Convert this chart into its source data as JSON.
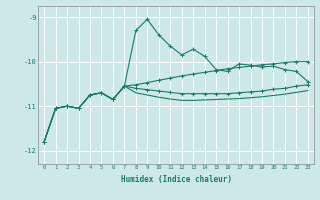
{
  "xlabel": "Humidex (Indice chaleur)",
  "ylabel": "",
  "x_ticks": [
    0,
    1,
    2,
    3,
    4,
    5,
    6,
    7,
    8,
    9,
    10,
    11,
    12,
    13,
    14,
    15,
    16,
    17,
    18,
    19,
    20,
    21,
    22,
    23
  ],
  "xlim": [
    -0.5,
    23.5
  ],
  "ylim": [
    -12.3,
    -8.75
  ],
  "y_ticks": [
    -12,
    -11,
    -10,
    -9
  ],
  "background_color": "#cce8e8",
  "grid_color": "#ffffff",
  "line_color": "#1a7a6a",
  "series1_x": [
    0,
    1,
    2,
    3,
    4,
    5,
    6,
    7,
    8,
    9,
    10,
    11,
    12,
    13,
    14,
    15,
    16,
    17,
    18,
    19,
    20,
    21,
    22,
    23
  ],
  "series1_y": [
    -11.8,
    -11.05,
    -11.0,
    -11.05,
    -10.75,
    -10.7,
    -10.85,
    -10.55,
    -9.3,
    -9.05,
    -9.4,
    -9.65,
    -9.85,
    -9.72,
    -9.88,
    -10.18,
    -10.22,
    -10.05,
    -10.08,
    -10.12,
    -10.1,
    -10.18,
    -10.22,
    -10.45
  ],
  "series2_x": [
    0,
    1,
    2,
    3,
    4,
    5,
    6,
    7,
    8,
    9,
    10,
    11,
    12,
    13,
    14,
    15,
    16,
    17,
    18,
    19,
    20,
    21,
    22,
    23
  ],
  "series2_y": [
    -11.8,
    -11.05,
    -11.0,
    -11.05,
    -10.75,
    -10.7,
    -10.85,
    -10.55,
    -10.52,
    -10.47,
    -10.42,
    -10.37,
    -10.32,
    -10.28,
    -10.24,
    -10.2,
    -10.16,
    -10.13,
    -10.1,
    -10.07,
    -10.05,
    -10.02,
    -10.0,
    -10.0
  ],
  "series3_x": [
    0,
    1,
    2,
    3,
    4,
    5,
    6,
    7,
    8,
    9,
    10,
    11,
    12,
    13,
    14,
    15,
    16,
    17,
    18,
    19,
    20,
    21,
    22,
    23
  ],
  "series3_y": [
    -11.8,
    -11.05,
    -11.0,
    -11.05,
    -10.75,
    -10.7,
    -10.85,
    -10.55,
    -10.6,
    -10.63,
    -10.66,
    -10.69,
    -10.72,
    -10.72,
    -10.72,
    -10.72,
    -10.72,
    -10.7,
    -10.68,
    -10.66,
    -10.62,
    -10.6,
    -10.55,
    -10.52
  ],
  "series4_x": [
    0,
    1,
    2,
    3,
    4,
    5,
    6,
    7,
    8,
    9,
    10,
    11,
    12,
    13,
    14,
    15,
    16,
    17,
    18,
    19,
    20,
    21,
    22,
    23
  ],
  "series4_y": [
    -11.8,
    -11.05,
    -11.0,
    -11.05,
    -10.75,
    -10.7,
    -10.85,
    -10.55,
    -10.7,
    -10.75,
    -10.8,
    -10.84,
    -10.87,
    -10.87,
    -10.86,
    -10.85,
    -10.84,
    -10.83,
    -10.81,
    -10.79,
    -10.76,
    -10.73,
    -10.69,
    -10.65
  ]
}
